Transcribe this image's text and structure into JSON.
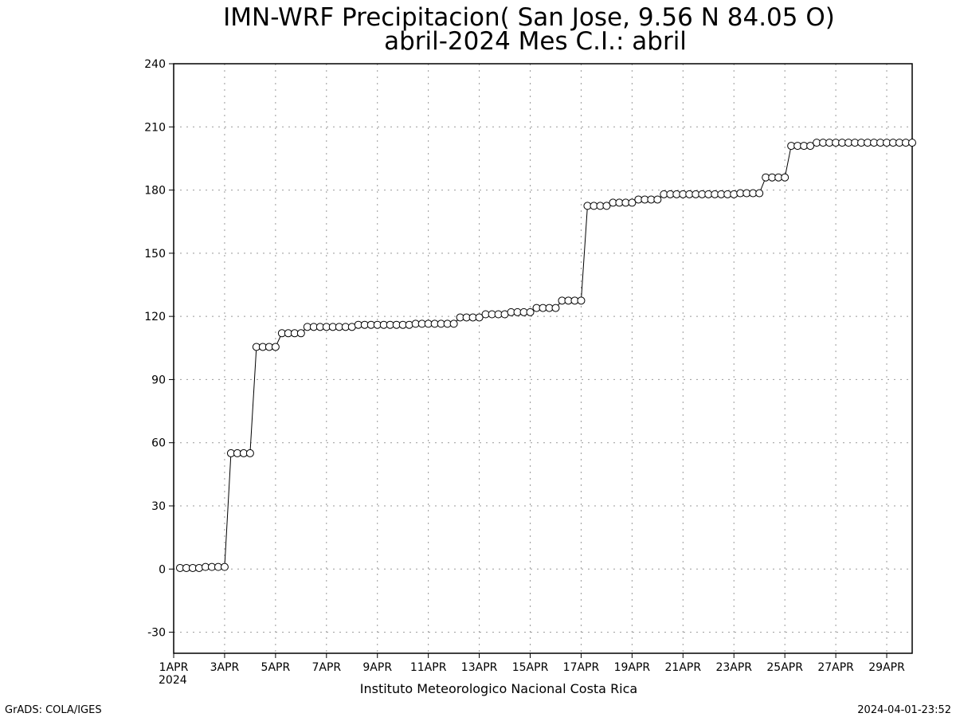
{
  "chart_data": {
    "type": "line",
    "title": "IMN-WRF  Precipitacion( San Jose, 9.56  N 84.05  O)",
    "subtitle": "abril-2024 Mes C.I.: abril",
    "xlabel": "Instituto Meteorologico Nacional Costa Rica",
    "x_year_label": "2024",
    "footer_left": "GrADS: COLA/IGES",
    "footer_right": "2024-04-01-23:52",
    "xlim": [
      1,
      30
    ],
    "xticks": [
      {
        "value": 1,
        "label": "1APR"
      },
      {
        "value": 3,
        "label": "3APR"
      },
      {
        "value": 5,
        "label": "5APR"
      },
      {
        "value": 7,
        "label": "7APR"
      },
      {
        "value": 9,
        "label": "9APR"
      },
      {
        "value": 11,
        "label": "11APR"
      },
      {
        "value": 13,
        "label": "13APR"
      },
      {
        "value": 15,
        "label": "15APR"
      },
      {
        "value": 17,
        "label": "17APR"
      },
      {
        "value": 19,
        "label": "19APR"
      },
      {
        "value": 21,
        "label": "21APR"
      },
      {
        "value": 23,
        "label": "23APR"
      },
      {
        "value": 25,
        "label": "25APR"
      },
      {
        "value": 27,
        "label": "27APR"
      },
      {
        "value": 29,
        "label": "29APR"
      }
    ],
    "ylim": [
      -40,
      240
    ],
    "yticks": [
      -30,
      0,
      30,
      60,
      90,
      120,
      150,
      180,
      210,
      240
    ],
    "grid": true,
    "color": "#000000",
    "x": [
      1.25,
      1.5,
      1.75,
      2,
      2.25,
      2.5,
      2.75,
      3,
      3.25,
      3.5,
      3.75,
      4,
      4.25,
      4.5,
      4.75,
      5,
      5.25,
      5.5,
      5.75,
      6,
      6.25,
      6.5,
      6.75,
      7,
      7.25,
      7.5,
      7.75,
      8,
      8.25,
      8.5,
      8.75,
      9,
      9.25,
      9.5,
      9.75,
      10,
      10.25,
      10.5,
      10.75,
      11,
      11.25,
      11.5,
      11.75,
      12,
      12.25,
      12.5,
      12.75,
      13,
      13.25,
      13.5,
      13.75,
      14,
      14.25,
      14.5,
      14.75,
      15,
      15.25,
      15.5,
      15.75,
      16,
      16.25,
      16.5,
      16.75,
      17,
      17.25,
      17.5,
      17.75,
      18,
      18.25,
      18.5,
      18.75,
      19,
      19.25,
      19.5,
      19.75,
      20,
      20.25,
      20.5,
      20.75,
      21,
      21.25,
      21.5,
      21.75,
      22,
      22.25,
      22.5,
      22.75,
      23,
      23.25,
      23.5,
      23.75,
      24,
      24.25,
      24.5,
      24.75,
      25,
      25.25,
      25.5,
      25.75,
      26,
      26.25,
      26.5,
      26.75,
      27,
      27.25,
      27.5,
      27.75,
      28,
      28.25,
      28.5,
      28.75,
      29,
      29.25,
      29.5,
      29.75,
      30
    ],
    "values": [
      0.5,
      0.5,
      0.5,
      0.5,
      1,
      1,
      1,
      1,
      55,
      55,
      55,
      55,
      105.5,
      105.5,
      105.5,
      105.5,
      112,
      112,
      112,
      112,
      115,
      115,
      115,
      115,
      115,
      115,
      115,
      115,
      116,
      116,
      116,
      116,
      116,
      116,
      116,
      116,
      116,
      116.5,
      116.5,
      116.5,
      116.5,
      116.5,
      116.5,
      116.5,
      119.5,
      119.5,
      119.5,
      119.5,
      121,
      121,
      121,
      121,
      122,
      122,
      122,
      122,
      124,
      124,
      124,
      124,
      127.5,
      127.5,
      127.5,
      127.5,
      172.5,
      172.5,
      172.5,
      172.5,
      174,
      174,
      174,
      174,
      175.5,
      175.5,
      175.5,
      175.5,
      178,
      178,
      178,
      178,
      178,
      178,
      178,
      178,
      178,
      178,
      178,
      178,
      178.5,
      178.5,
      178.5,
      178.5,
      186,
      186,
      186,
      186,
      201,
      201,
      201,
      201,
      202.5,
      202.5,
      202.5,
      202.5,
      202.5,
      202.5,
      202.5,
      202.5,
      202.5,
      202.5,
      202.5,
      202.5,
      202.5,
      202.5,
      202.5,
      202.5
    ]
  }
}
